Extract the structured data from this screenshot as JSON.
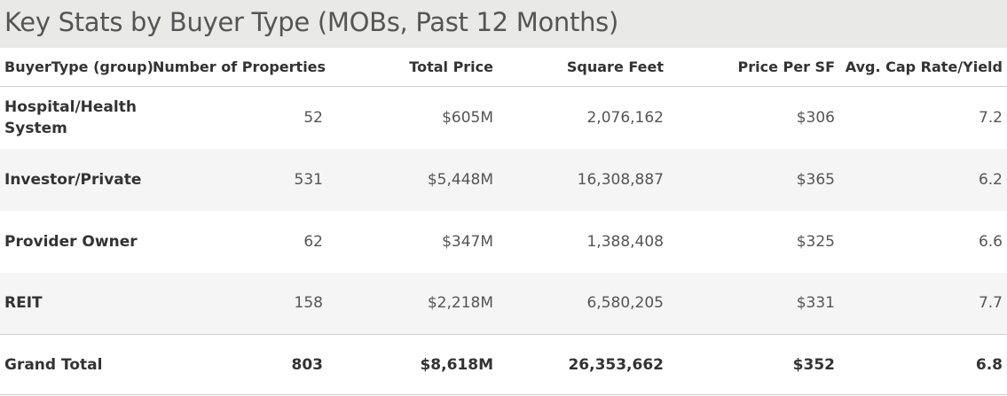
{
  "chart_data": {
    "type": "table",
    "title": "Key Stats by Buyer Type (MOBs, Past 12 Months)",
    "columns": [
      "BuyerType (group)",
      "Number of Properties",
      "Total Price",
      "Square Feet",
      "Price Per SF",
      "Avg. Cap Rate/Yield"
    ],
    "rows": [
      [
        "Hospital/Health System",
        "52",
        "$605M",
        "2,076,162",
        "$306",
        "7.2"
      ],
      [
        "Investor/Private",
        "531",
        "$5,448M",
        "16,308,887",
        "$365",
        "6.2"
      ],
      [
        "Provider Owner",
        "62",
        "$347M",
        "1,388,408",
        "$325",
        "6.6"
      ],
      [
        "REIT",
        "158",
        "$2,218M",
        "6,580,205",
        "$331",
        "7.7"
      ]
    ],
    "total": [
      "Grand Total",
      "803",
      "$8,618M",
      "26,353,662",
      "$352",
      "6.8"
    ]
  }
}
